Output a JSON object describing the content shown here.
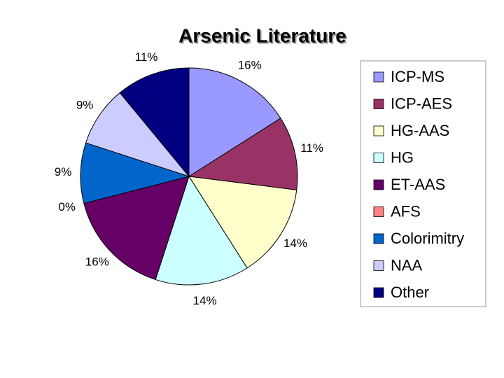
{
  "chart_data": {
    "type": "pie",
    "title": "Arsenic Literature",
    "categories": [
      "ICP-MS",
      "ICP-AES",
      "HG-AAS",
      "HG",
      "ET-AAS",
      "AFS",
      "Colorimitry",
      "NAA",
      "Other"
    ],
    "values": [
      16,
      11,
      14,
      14,
      16,
      0,
      9,
      9,
      11
    ],
    "value_labels": [
      "16%",
      "11%",
      "14%",
      "14%",
      "16%",
      "0%",
      "9%",
      "9%",
      "11%"
    ],
    "colors": [
      "#9999ff",
      "#993366",
      "#ffffcc",
      "#ccffff",
      "#660066",
      "#ff8080",
      "#0066cc",
      "#ccccff",
      "#000080"
    ],
    "legend": "right"
  }
}
